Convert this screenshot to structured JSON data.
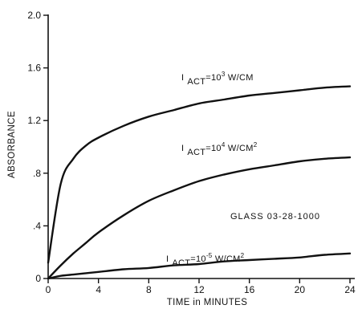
{
  "chart_data": {
    "type": "line",
    "title": "",
    "xlabel": "TIME in MINUTES",
    "ylabel": "ABSORBANCE",
    "xlim": [
      0,
      24
    ],
    "ylim": [
      0,
      2.0
    ],
    "x_ticks": [
      0,
      4,
      8,
      12,
      16,
      20,
      24
    ],
    "y_ticks": [
      0,
      0.4,
      0.8,
      1.2,
      1.6,
      2.0
    ],
    "x_tick_labels": [
      "0",
      "4",
      "8",
      "12",
      "16",
      "20",
      "24"
    ],
    "y_tick_labels": [
      "0",
      ".4",
      ".8",
      "1.2",
      "1.6",
      "2.0"
    ],
    "grid": false,
    "annotation": "GLASS 03-28-1000",
    "x": [
      0,
      1,
      2,
      3,
      4,
      6,
      8,
      10,
      12,
      14,
      16,
      18,
      20,
      22,
      24
    ],
    "series": [
      {
        "label_parts": [
          "I",
          "ACT",
          "=10",
          "3",
          "W/CM",
          ""
        ],
        "values": [
          0.12,
          0.72,
          0.91,
          1.01,
          1.07,
          1.16,
          1.23,
          1.28,
          1.33,
          1.36,
          1.39,
          1.41,
          1.43,
          1.45,
          1.46
        ]
      },
      {
        "label_parts": [
          "I",
          "ACT",
          "=10",
          "4",
          "W/CM",
          "2"
        ],
        "values": [
          0.0,
          0.1,
          0.19,
          0.27,
          0.35,
          0.48,
          0.59,
          0.67,
          0.74,
          0.79,
          0.83,
          0.86,
          0.89,
          0.91,
          0.92
        ]
      },
      {
        "label_parts": [
          "I",
          "ACT",
          "=10",
          "-5",
          "W/CM",
          "2"
        ],
        "values": [
          0.0,
          0.02,
          0.03,
          0.04,
          0.05,
          0.07,
          0.08,
          0.1,
          0.11,
          0.13,
          0.14,
          0.15,
          0.16,
          0.18,
          0.19
        ]
      }
    ]
  }
}
